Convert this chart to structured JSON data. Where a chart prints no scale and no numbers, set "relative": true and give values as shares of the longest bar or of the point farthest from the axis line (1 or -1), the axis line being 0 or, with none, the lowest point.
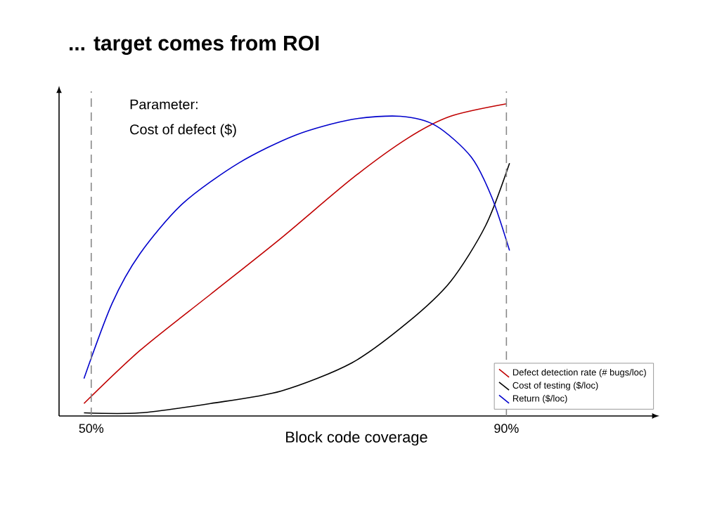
{
  "chart_data": {
    "type": "line",
    "title": "... target comes from ROI",
    "xlabel": "Block code coverage",
    "relative": true,
    "xlim": [
      46.9,
      104.2
    ],
    "xticks": [
      {
        "value": 50,
        "label": "50%"
      },
      {
        "value": 90,
        "label": "90%"
      }
    ],
    "annotations": [
      "Parameter:",
      "Cost of defect ($)"
    ],
    "ref_lines": [
      {
        "axis": "x",
        "value": 50,
        "color": "#888888",
        "line_style": "dashed"
      },
      {
        "axis": "x",
        "value": 90,
        "color": "#888888",
        "line_style": "dashed"
      }
    ],
    "legend": "bottom right",
    "series": [
      {
        "name": "Defect detection rate (# bugs/loc)",
        "color": "#c00000",
        "x": [
          49.3,
          54.7,
          61.5,
          68.3,
          75.1,
          80.5,
          84.6,
          90
        ],
        "values": [
          0.04,
          0.21,
          0.39,
          0.57,
          0.76,
          0.89,
          0.96,
          1.0
        ]
      },
      {
        "name": "Cost of testing ($/loc)",
        "color": "#000000",
        "x": [
          49.3,
          54.7,
          61.5,
          68.3,
          75.1,
          80.5,
          84.6,
          88.0,
          90.3
        ],
        "values": [
          0.01,
          0.01,
          0.04,
          0.08,
          0.17,
          0.3,
          0.43,
          0.61,
          0.81
        ]
      },
      {
        "name": "Return ($/loc)",
        "color": "#0000cc",
        "x": [
          49.3,
          52.0,
          54.7,
          58.8,
          64.2,
          69.7,
          75.1,
          79.8,
          83.2,
          86.6,
          88.6,
          90.3
        ],
        "values": [
          0.12,
          0.36,
          0.52,
          0.68,
          0.81,
          0.9,
          0.95,
          0.96,
          0.93,
          0.83,
          0.7,
          0.53
        ]
      }
    ]
  }
}
